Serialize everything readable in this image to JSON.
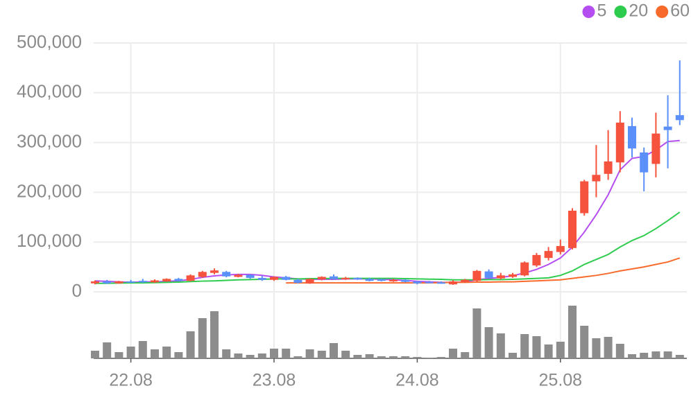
{
  "chart_data": {
    "type": "candlestick",
    "categories": [
      null,
      null,
      null,
      "22.08",
      null,
      null,
      null,
      null,
      null,
      null,
      null,
      null,
      null,
      null,
      null,
      "23.08",
      null,
      null,
      null,
      null,
      null,
      null,
      null,
      null,
      null,
      null,
      null,
      "24.08",
      null,
      null,
      null,
      null,
      null,
      null,
      null,
      null,
      null,
      null,
      null,
      "25.08",
      null,
      null,
      null,
      null,
      null,
      null,
      null,
      null,
      null,
      null
    ],
    "open": [
      17000,
      21000,
      17000,
      21000,
      22000,
      19000,
      21000,
      26000,
      22000,
      30000,
      38000,
      40000,
      30000,
      34000,
      28000,
      24000,
      30000,
      24000,
      17000,
      25000,
      31000,
      25000,
      28000,
      26000,
      25000,
      21000,
      24000,
      21000,
      20000,
      19000,
      15000,
      20000,
      22000,
      41000,
      27000,
      30000,
      33000,
      53000,
      68000,
      80000,
      88000,
      158000,
      222000,
      237000,
      260000,
      333000,
      280000,
      257000,
      332000,
      355000
    ],
    "high": [
      23000,
      24000,
      22000,
      24000,
      26000,
      25000,
      27000,
      28000,
      35000,
      42000,
      47000,
      42000,
      36000,
      35000,
      32000,
      31000,
      32000,
      26000,
      27000,
      31000,
      35000,
      30000,
      29000,
      28000,
      26000,
      26000,
      25000,
      22000,
      22000,
      21000,
      23000,
      26000,
      44000,
      45000,
      38000,
      38000,
      61000,
      78000,
      90000,
      105000,
      168000,
      225000,
      295000,
      325000,
      363000,
      350000,
      290000,
      360000,
      395000,
      465000
    ],
    "low": [
      15000,
      16000,
      16000,
      18000,
      18000,
      18000,
      20000,
      21000,
      21000,
      28000,
      35000,
      29000,
      29000,
      26000,
      22000,
      22000,
      23000,
      17000,
      16000,
      23000,
      24000,
      24000,
      24000,
      21000,
      21000,
      20000,
      19000,
      15000,
      17000,
      16000,
      14000,
      18000,
      20000,
      27000,
      25000,
      28000,
      31000,
      50000,
      63000,
      75000,
      85000,
      153000,
      190000,
      225000,
      240000,
      270000,
      202000,
      230000,
      248000,
      335000
    ],
    "close": [
      21000,
      17000,
      21000,
      19000,
      19000,
      23000,
      26000,
      22000,
      33000,
      40000,
      43000,
      31000,
      34000,
      28000,
      24000,
      30000,
      24000,
      18000,
      26000,
      30000,
      26000,
      28000,
      25000,
      22000,
      22000,
      24000,
      20000,
      17000,
      18000,
      17000,
      21000,
      24000,
      42000,
      28000,
      33000,
      35000,
      59000,
      74000,
      82000,
      92000,
      163000,
      222000,
      235000,
      262000,
      340000,
      288000,
      240000,
      318000,
      325000,
      345000
    ],
    "up_color": "#f5533d",
    "down_color": "#5b8ff9",
    "volume": [
      11,
      23,
      9,
      17,
      25,
      13,
      17,
      9,
      39,
      58,
      68,
      13,
      7,
      5,
      7,
      14,
      14,
      3,
      13,
      11,
      22,
      11,
      5,
      6,
      3,
      3,
      3,
      2,
      1,
      2,
      14,
      9,
      72,
      45,
      36,
      8,
      35,
      32,
      20,
      24,
      76,
      47,
      29,
      31,
      21,
      6,
      8,
      10,
      10,
      5
    ],
    "volume_color": "#8c8c8c",
    "series": [
      {
        "name": "5",
        "color": "#b44ef0",
        "values": [
          22000,
          21000,
          20000,
          19000,
          20000,
          20000,
          21000,
          22000,
          25000,
          29000,
          32000,
          34000,
          35000,
          35000,
          33000,
          30000,
          28000,
          26000,
          25000,
          25000,
          25000,
          26000,
          26000,
          26000,
          25000,
          24000,
          23000,
          21000,
          20000,
          19000,
          19000,
          20000,
          24000,
          27000,
          29000,
          32000,
          38000,
          45000,
          55000,
          68000,
          90000,
          120000,
          155000,
          195000,
          245000,
          268000,
          272000,
          285000,
          302000,
          304000
        ]
      },
      {
        "name": "20",
        "color": "#2ecc4e",
        "values": [
          17000,
          17000,
          17500,
          18000,
          18000,
          18500,
          19000,
          19500,
          20500,
          21500,
          22000,
          23000,
          24000,
          24500,
          25000,
          26000,
          26000,
          26000,
          26500,
          26500,
          27000,
          27000,
          27000,
          27000,
          27000,
          27000,
          26500,
          26000,
          25500,
          25000,
          24000,
          24000,
          24000,
          24500,
          24500,
          25000,
          26000,
          27000,
          28000,
          33000,
          42000,
          55000,
          65000,
          75000,
          90000,
          103000,
          113000,
          127000,
          143000,
          160000
        ]
      },
      {
        "name": "60",
        "color": "#f86a2b",
        "values": [
          null,
          null,
          null,
          null,
          null,
          null,
          null,
          null,
          null,
          null,
          null,
          null,
          null,
          null,
          null,
          null,
          18000,
          18000,
          18000,
          18000,
          18000,
          18000,
          18000,
          18000,
          18000,
          18000,
          18000,
          18000,
          18000,
          18500,
          19000,
          19000,
          19500,
          19500,
          20000,
          20000,
          21000,
          22000,
          23000,
          24000,
          27000,
          30000,
          33000,
          37000,
          42000,
          46000,
          50000,
          55000,
          60000,
          68000
        ]
      }
    ],
    "ylim": [
      0,
      500000
    ],
    "yticks": [
      0,
      {
        "value": 100000,
        "label": "100,000"
      },
      {
        "value": 200000,
        "label": "200,000"
      },
      {
        "value": 300000,
        "label": "300,000"
      },
      {
        "value": 400000,
        "label": "400,000"
      },
      {
        "value": 500000,
        "label": "500,000"
      }
    ],
    "vlim": [
      0,
      80
    ],
    "grid": true
  }
}
